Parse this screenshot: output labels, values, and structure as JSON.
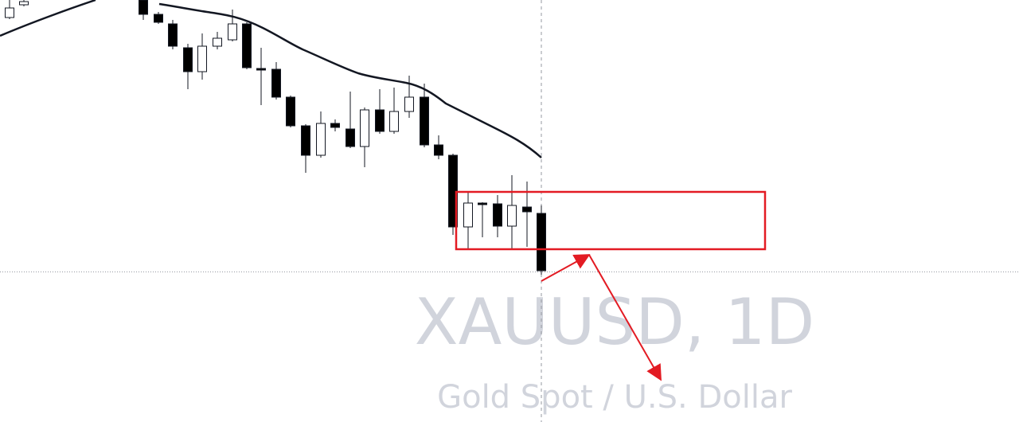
{
  "watermark": {
    "symbol": "XAUUSD, 1D",
    "description": "Gold Spot / U.S. Dollar"
  }
}
